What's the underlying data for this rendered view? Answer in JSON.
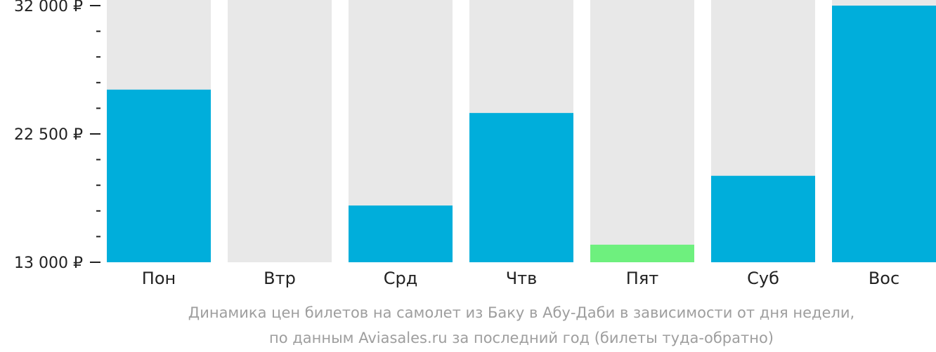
{
  "chart_data": {
    "type": "bar",
    "categories": [
      "Пон",
      "Втр",
      "Срд",
      "Чтв",
      "Пят",
      "Суб",
      "Вос"
    ],
    "values": [
      25780,
      null,
      17200,
      24050,
      14300,
      19400,
      32000
    ],
    "highlight_index": 4,
    "ylim": [
      13000,
      32000
    ],
    "yticks": [
      {
        "value": 32000,
        "label": "32 000 ₽"
      },
      {
        "value": 22500,
        "label": "22 500 ₽"
      },
      {
        "value": 13000,
        "label": "13 000 ₽"
      }
    ],
    "minor_ticks": [
      30100,
      28200,
      26300,
      24400,
      20600,
      18700,
      16800,
      14900
    ],
    "colors": {
      "bar": "#00aedb",
      "highlight": "#6ef07e",
      "background": "#e8e8e8"
    },
    "caption_line1": "Динамика цен билетов на самолет из Баку в Абу-Даби в зависимости от дня недели,",
    "caption_line2": "по данным Aviasales.ru за последний год (билеты туда-обратно)"
  }
}
